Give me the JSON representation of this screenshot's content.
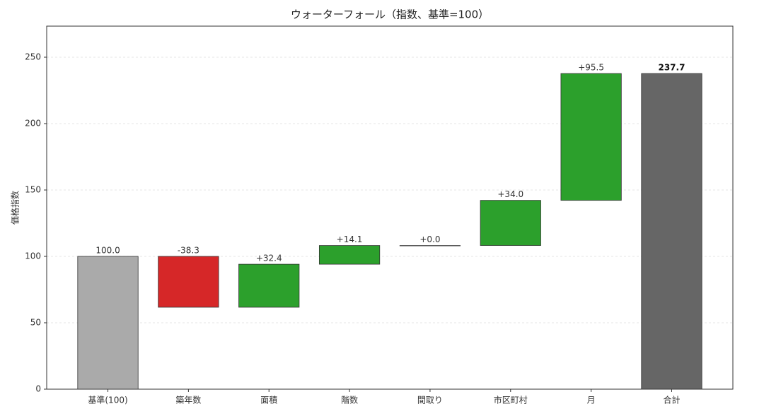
{
  "chart_data": {
    "type": "waterfall",
    "title": "ウォーターフォール（指数、基準=100）",
    "y_label": "価格指数",
    "categories": [
      "基準(100)",
      "築年数",
      "面積",
      "階数",
      "間取り",
      "市区町村",
      "月",
      "合計"
    ],
    "values": [
      100,
      -38.3,
      32.4,
      14.1,
      0.0,
      34.0,
      95.5,
      237.7
    ],
    "value_labels": [
      "100.0",
      "-38.3",
      "+32.4",
      "+14.1",
      "+0.0",
      "+34.0",
      "+95.5",
      "237.7"
    ],
    "colors": [
      "#aaaaaa",
      "#d62728",
      "#2ca02c",
      "#2ca02c",
      "#2ca02c",
      "#2ca02c",
      "#2ca02c",
      "#666666"
    ],
    "ylim": [
      0,
      273.4
    ],
    "yticks": [
      0,
      50,
      100,
      150,
      200,
      250
    ],
    "grid": true
  }
}
